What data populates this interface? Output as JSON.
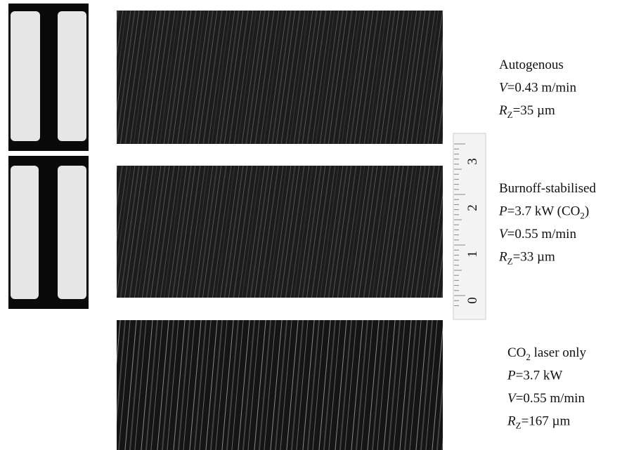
{
  "panels": [
    {
      "lines": [
        [
          {
            "text": "Autogenous",
            "style": "normal"
          }
        ],
        [
          {
            "text": "V",
            "style": "italic"
          },
          {
            "text": "=0.43 m/min",
            "style": "normal"
          }
        ],
        [
          {
            "text": "R",
            "style": "italic"
          },
          {
            "text": "Z",
            "style": "sub"
          },
          {
            "text": "=35 µm",
            "style": "normal"
          }
        ]
      ]
    },
    {
      "lines": [
        [
          {
            "text": "Burnoff-stabilised",
            "style": "normal"
          }
        ],
        [
          {
            "text": "P",
            "style": "italic"
          },
          {
            "text": "=3.7 kW (CO",
            "style": "normal"
          },
          {
            "text": "2",
            "style": "sub"
          },
          {
            "text": ")",
            "style": "normal"
          }
        ],
        [
          {
            "text": "V",
            "style": "italic"
          },
          {
            "text": "=0.55 m/min",
            "style": "normal"
          }
        ],
        [
          {
            "text": "R",
            "style": "italic"
          },
          {
            "text": "Z",
            "style": "sub"
          },
          {
            "text": "=33 µm",
            "style": "normal"
          }
        ]
      ]
    },
    {
      "lines": [
        [
          {
            "text": "CO",
            "style": "normal"
          },
          {
            "text": "2",
            "style": "sub"
          },
          {
            "text": " laser only",
            "style": "normal"
          }
        ],
        [
          {
            "text": "P",
            "style": "italic"
          },
          {
            "text": "=3.7 kW",
            "style": "normal"
          }
        ],
        [
          {
            "text": "V",
            "style": "italic"
          },
          {
            "text": "=0.55 m/min",
            "style": "normal"
          }
        ],
        [
          {
            "text": "R",
            "style": "italic"
          },
          {
            "text": "Z",
            "style": "sub"
          },
          {
            "text": "=167 µm",
            "style": "normal"
          }
        ]
      ]
    }
  ],
  "ruler": {
    "labels": [
      "3",
      "2",
      "1",
      "0"
    ]
  }
}
